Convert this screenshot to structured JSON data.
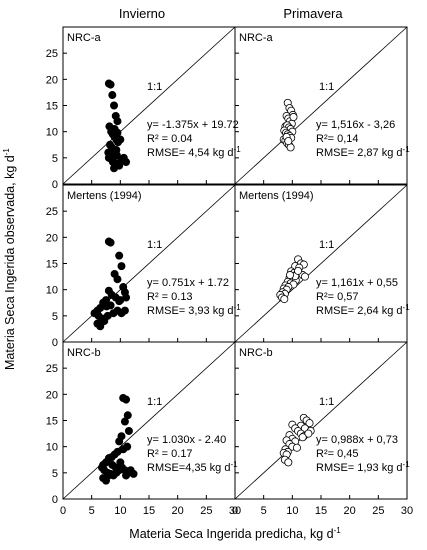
{
  "column_titles": [
    "Invierno",
    "Primavera"
  ],
  "y_axis_label": "Materia Seca Ingerida observada, kg d",
  "x_axis_label": "Materia Seca Ingerida predicha, kg d",
  "unit_superscript": "-1",
  "chart_data": [
    {
      "type": "scatter",
      "panel": "NRC-a",
      "season": "Invierno",
      "marker": "filled",
      "xlim": [
        0,
        30
      ],
      "ylim": [
        0,
        30
      ],
      "grid": false,
      "reference_line": "1:1",
      "annotations": [
        "y= -1.375x + 19.72",
        "R² = 0.04",
        "RMSE= 4,54 kg d"
      ],
      "x": [
        8.0,
        8.3,
        8.6,
        8.9,
        9.2,
        9.5,
        8.1,
        8.4,
        8.7,
        9.0,
        9.3,
        9.6,
        8.2,
        8.5,
        8.8,
        9.1,
        9.4,
        8.0,
        8.6,
        9.2,
        9.8,
        10.2,
        10.6,
        11.0,
        8.3,
        8.9,
        9.5,
        10.0,
        8.7,
        9.3,
        7.9,
        8.4,
        9.0
      ],
      "y": [
        19.2,
        19.0,
        17.0,
        15.0,
        13.0,
        12.0,
        11.0,
        10.0,
        9.5,
        9.0,
        8.5,
        8.0,
        7.5,
        7.0,
        6.5,
        6.0,
        5.5,
        5.0,
        4.5,
        4.0,
        3.5,
        4.5,
        5.0,
        4.2,
        6.0,
        3.0,
        9.8,
        8.5,
        4.2,
        6.5,
        6.0,
        5.5,
        10.5
      ]
    },
    {
      "type": "scatter",
      "panel": "NRC-a",
      "season": "Primavera",
      "marker": "open",
      "xlim": [
        0,
        30
      ],
      "ylim": [
        0,
        30
      ],
      "grid": false,
      "reference_line": "1:1",
      "annotations": [
        "y= 1,516x - 3,26",
        "R²= 0,14",
        "RMSE= 2,87 kg d"
      ],
      "x": [
        9.2,
        9.5,
        9.8,
        10.1,
        9.0,
        9.3,
        9.6,
        9.9,
        8.8,
        9.1,
        9.4,
        9.7,
        10.0,
        8.6,
        8.9,
        9.2,
        9.5,
        9.8,
        8.5,
        8.8,
        9.1,
        9.4,
        9.7,
        10.2,
        9.0,
        9.3
      ],
      "y": [
        15.5,
        14.5,
        14.0,
        13.2,
        13.0,
        12.5,
        12.0,
        11.5,
        11.0,
        11.2,
        10.8,
        10.5,
        10.0,
        10.2,
        9.8,
        9.5,
        9.2,
        8.8,
        8.5,
        8.3,
        7.8,
        7.5,
        7.0,
        12.8,
        9.0,
        8.2
      ]
    },
    {
      "type": "scatter",
      "panel": "Mertens (1994)",
      "season": "Invierno",
      "marker": "filled",
      "xlim": [
        0,
        30
      ],
      "ylim": [
        0,
        30
      ],
      "grid": false,
      "reference_line": "1:1",
      "annotations": [
        "y= 0.751x + 1.72",
        "R² = 0.13",
        "RMSE= 3,93 kg d"
      ],
      "x": [
        8.0,
        8.3,
        9.8,
        10.2,
        9.0,
        9.5,
        10.5,
        10.8,
        11.0,
        10.0,
        9.2,
        8.5,
        8.0,
        7.5,
        7.0,
        6.5,
        6.0,
        5.5,
        6.2,
        6.8,
        7.2,
        7.8,
        8.8,
        9.5,
        10.2,
        10.8,
        6.0,
        6.5,
        7.0,
        7.6,
        8.3,
        9.8
      ],
      "y": [
        19.2,
        19.0,
        16.5,
        14.5,
        13.0,
        12.0,
        10.5,
        9.5,
        8.5,
        8.0,
        8.5,
        9.0,
        9.8,
        8.0,
        7.5,
        6.5,
        6.0,
        5.5,
        5.0,
        4.5,
        4.0,
        5.0,
        5.5,
        6.0,
        5.5,
        6.0,
        3.5,
        3.0,
        4.0,
        6.8,
        7.0,
        7.8
      ]
    },
    {
      "type": "scatter",
      "panel": "Mertens (1994)",
      "season": "Primavera",
      "marker": "open",
      "xlim": [
        0,
        30
      ],
      "ylim": [
        0,
        30
      ],
      "grid": false,
      "reference_line": "1:1",
      "annotations": [
        "y= 1,161x + 0,55",
        "R²= 0,57",
        "RMSE= 2,64 kg d"
      ],
      "x": [
        11.0,
        11.5,
        12.0,
        10.5,
        11.2,
        9.8,
        10.3,
        10.8,
        11.8,
        12.2,
        9.5,
        10.0,
        10.6,
        9.2,
        9.7,
        10.2,
        8.8,
        9.3,
        8.5,
        9.0,
        8.3,
        8.7,
        7.9,
        8.2,
        8.6,
        10.5,
        11.0,
        9.6
      ],
      "y": [
        15.8,
        15.0,
        14.8,
        14.5,
        14.2,
        13.5,
        13.2,
        13.0,
        12.8,
        12.5,
        12.2,
        12.0,
        11.8,
        11.5,
        11.2,
        11.0,
        10.8,
        10.5,
        10.2,
        10.0,
        9.5,
        9.2,
        9.0,
        8.5,
        8.2,
        12.6,
        13.6,
        12.8
      ]
    },
    {
      "type": "scatter",
      "panel": "NRC-b",
      "season": "Invierno",
      "marker": "filled",
      "xlim": [
        0,
        30
      ],
      "ylim": [
        0,
        30
      ],
      "grid": false,
      "reference_line": "1:1",
      "annotations": [
        "y= 1.030x - 2.40",
        "R² = 0.17",
        "RMSE=4,35 kg d"
      ],
      "x": [
        10.5,
        11.0,
        11.3,
        10.8,
        11.5,
        10.2,
        9.8,
        11.2,
        10.5,
        9.5,
        9.0,
        8.5,
        8.0,
        7.5,
        7.0,
        6.8,
        7.2,
        7.8,
        8.3,
        8.8,
        9.3,
        9.8,
        10.3,
        10.8,
        11.3,
        11.8,
        12.3,
        7.0,
        7.5,
        8.0,
        8.6,
        9.2,
        10.0,
        11.0
      ],
      "y": [
        19.3,
        19.0,
        16.0,
        14.8,
        13.0,
        12.0,
        11.0,
        10.0,
        9.5,
        9.0,
        8.5,
        8.0,
        7.8,
        7.0,
        6.5,
        6.0,
        5.5,
        5.0,
        4.8,
        4.5,
        5.0,
        5.5,
        6.0,
        5.5,
        5.0,
        5.5,
        4.8,
        4.0,
        3.5,
        4.5,
        6.5,
        6.0,
        7.0,
        4.5
      ]
    },
    {
      "type": "scatter",
      "panel": "NRC-b",
      "season": "Primavera",
      "marker": "open",
      "xlim": [
        0,
        30
      ],
      "ylim": [
        0,
        30
      ],
      "grid": false,
      "reference_line": "1:1",
      "annotations": [
        "y= 0,988x + 0,73",
        "R²= 0,45",
        "RMSE= 1,93 kg d"
      ],
      "x": [
        12.0,
        12.5,
        13.0,
        11.5,
        12.2,
        10.0,
        10.5,
        11.0,
        11.5,
        12.0,
        9.5,
        10.0,
        10.5,
        9.0,
        9.5,
        10.0,
        8.8,
        9.2,
        8.5,
        9.0,
        8.7,
        9.3,
        13.2,
        12.8,
        11.8,
        10.8
      ],
      "y": [
        15.5,
        15.0,
        14.5,
        14.0,
        13.5,
        14.2,
        13.5,
        13.0,
        12.5,
        12.0,
        12.2,
        11.5,
        11.0,
        11.2,
        10.5,
        10.0,
        9.5,
        9.0,
        8.8,
        8.5,
        7.5,
        7.0,
        13.0,
        12.5,
        11.8,
        9.8
      ]
    }
  ]
}
